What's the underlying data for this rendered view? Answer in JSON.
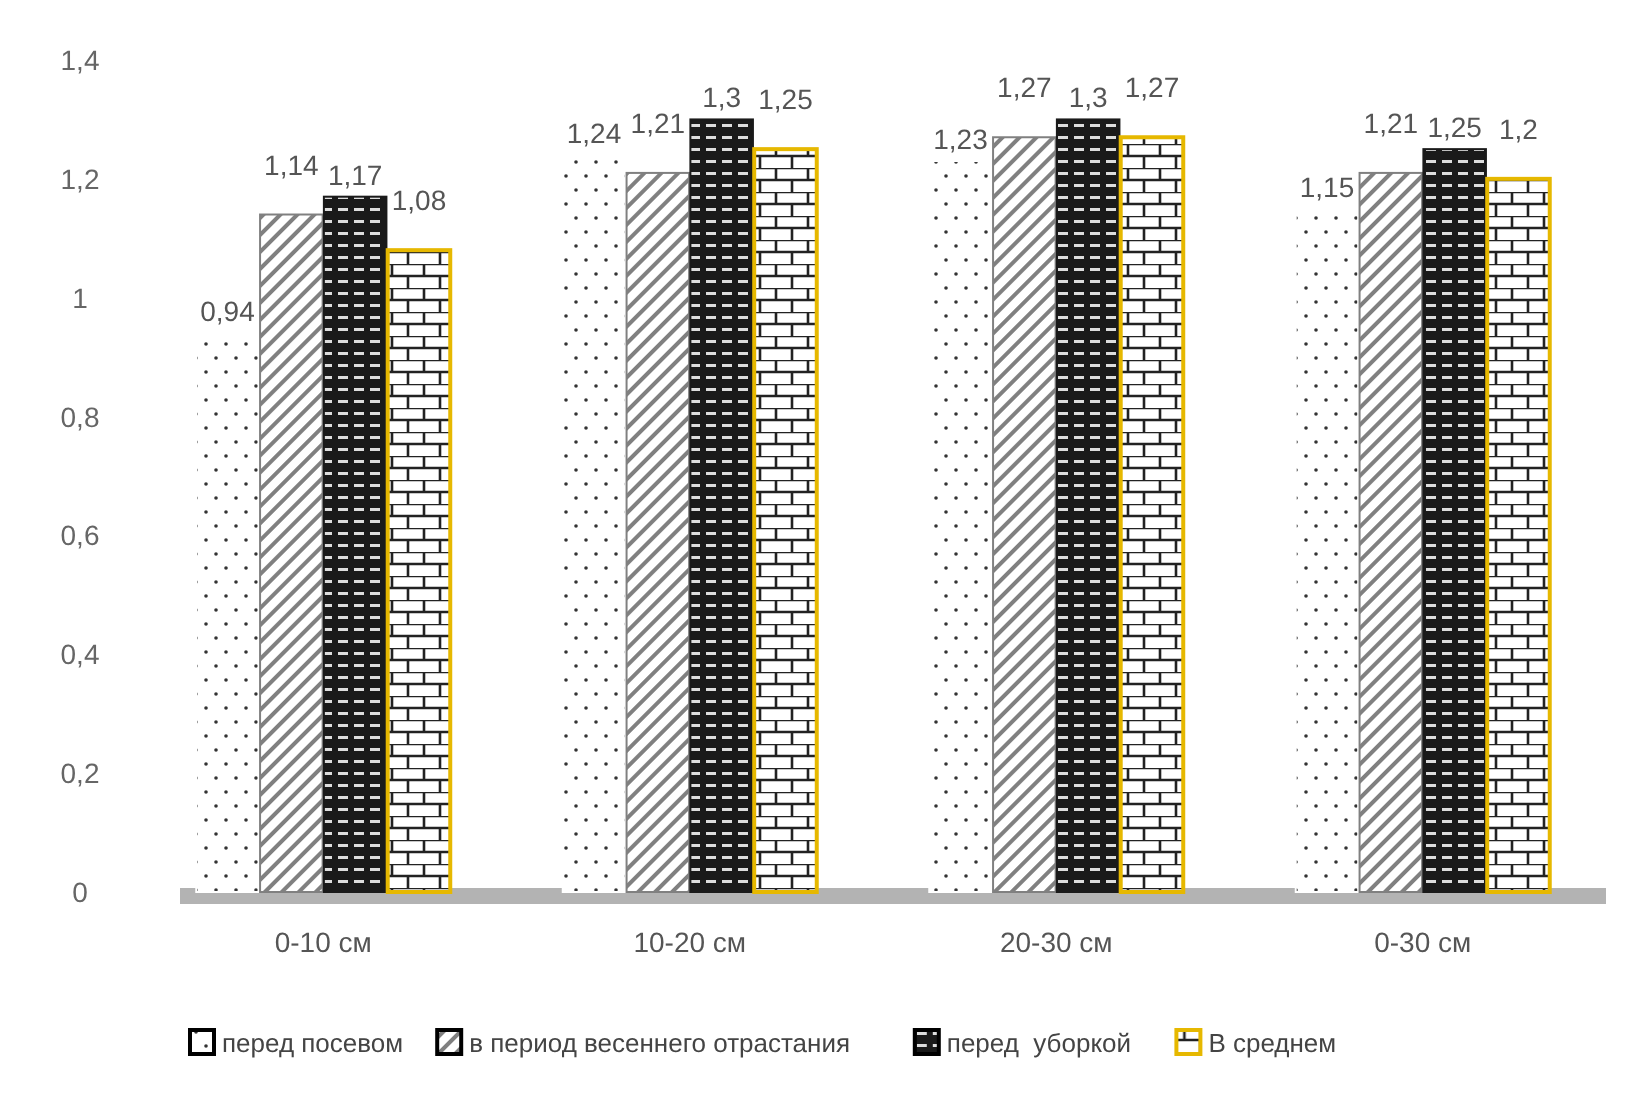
{
  "chart_data": {
    "type": "bar",
    "categories": [
      "0-10 см",
      "10-20 см",
      "20-30 см",
      "0-30 см"
    ],
    "series": [
      {
        "name": "перед посевом",
        "color": "#ffffff",
        "values": [
          0.94,
          1.24,
          1.23,
          1.15
        ],
        "value_labels": [
          "0,94",
          "1,24",
          "1,23",
          "1,15"
        ]
      },
      {
        "name": "в период весеннего отрастания",
        "color": "#808080",
        "values": [
          1.14,
          1.21,
          1.27,
          1.21
        ],
        "value_labels": [
          "1,14",
          "1,21",
          "1,27",
          "1,21"
        ]
      },
      {
        "name": "перед  уборкой",
        "color": "#1a1a1a",
        "values": [
          1.17,
          1.3,
          1.3,
          1.25
        ],
        "value_labels": [
          "1,17",
          "1,3",
          "1,3",
          "1,25"
        ]
      },
      {
        "name": "В среднем",
        "color": "#e6b800",
        "values": [
          1.08,
          1.25,
          1.27,
          1.2
        ],
        "value_labels": [
          "1,08",
          "1,25",
          "1,27",
          "1,2"
        ]
      }
    ],
    "ylim": [
      0,
      1.4
    ],
    "yticks": [
      {
        "value": 0,
        "label": "0"
      },
      {
        "value": 0.2,
        "label": "0,2"
      },
      {
        "value": 0.4,
        "label": "0,4"
      },
      {
        "value": 0.6,
        "label": "0,6"
      },
      {
        "value": 0.8,
        "label": "0,8"
      },
      {
        "value": 1,
        "label": "1"
      },
      {
        "value": 1.2,
        "label": "1,2"
      },
      {
        "value": 1.4,
        "label": "1,4"
      }
    ],
    "grid": false,
    "legend": "bottom"
  }
}
